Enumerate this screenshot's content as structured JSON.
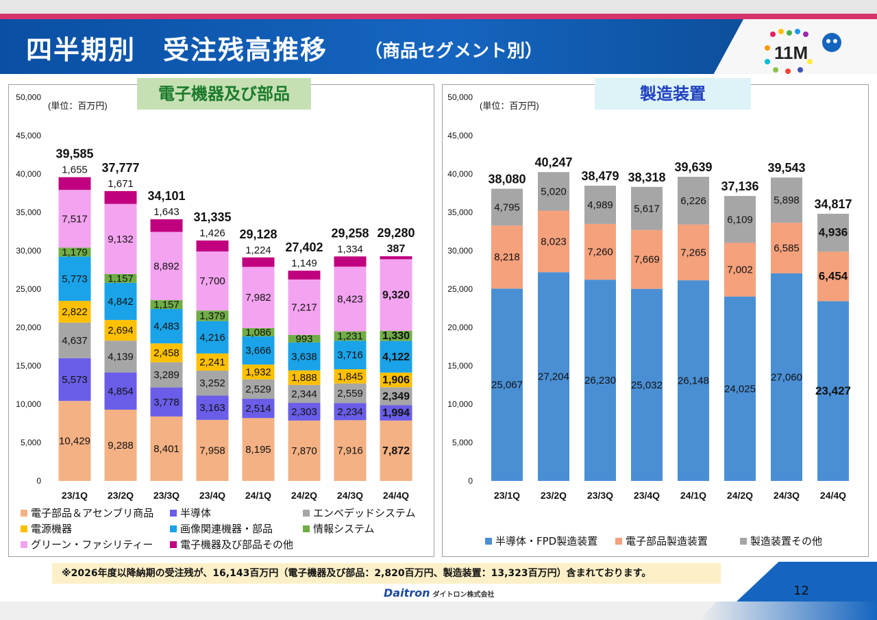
{
  "header": {
    "title": "四半期別　受注残高推移",
    "subtitle": "（商品セグメント別）",
    "logo_text": "11M"
  },
  "left_panel": {
    "tag": "電子機器及び部品"
  },
  "right_panel": {
    "tag": "製造装置"
  },
  "chart_data": [
    {
      "type": "bar",
      "stacked": true,
      "title": "電子機器及び部品",
      "unit_label": "(単位：百万円)",
      "categories": [
        "23/1Q",
        "23/2Q",
        "23/3Q",
        "23/4Q",
        "24/1Q",
        "24/2Q",
        "24/3Q",
        "24/4Q"
      ],
      "ylim": [
        0,
        50000
      ],
      "yticks": [
        0,
        5000,
        10000,
        15000,
        20000,
        25000,
        30000,
        35000,
        40000,
        45000,
        50000
      ],
      "ytick_labels": [
        "0",
        "5,000",
        "10,000",
        "15,000",
        "20,000",
        "25,000",
        "30,000",
        "35,000",
        "40,000",
        "45,000",
        "50,000"
      ],
      "totals": [
        "39,585",
        "37,777",
        "34,101",
        "31,335",
        "29,128",
        "27,402",
        "29,258",
        "29,280"
      ],
      "total_values": [
        39585,
        37777,
        34101,
        31335,
        29128,
        27402,
        29258,
        29280
      ],
      "series": [
        {
          "name": "電子部品＆アセンブリ商品",
          "color": "#f4b183",
          "values": [
            10429,
            9288,
            8401,
            7958,
            8195,
            7870,
            7916,
            7872
          ],
          "labels": [
            "10,429",
            "9,288",
            "8,401",
            "7,958",
            "8,195",
            "7,870",
            "7,916",
            "7,872"
          ]
        },
        {
          "name": "半導体",
          "color": "#6a5de8",
          "values": [
            5573,
            4854,
            3778,
            3163,
            2514,
            2303,
            2234,
            1994
          ],
          "labels": [
            "5,573",
            "4,854",
            "3,778",
            "3,163",
            "2,514",
            "2,303",
            "2,234",
            "1,994"
          ]
        },
        {
          "name": "エンベデッドシステム",
          "color": "#a6a6a6",
          "values": [
            4637,
            4139,
            3289,
            3252,
            2529,
            2344,
            2559,
            2349
          ],
          "labels": [
            "4,637",
            "4,139",
            "3,289",
            "3,252",
            "2,529",
            "2,344",
            "2,559",
            "2,349"
          ]
        },
        {
          "name": "電源機器",
          "color": "#ffc000",
          "values": [
            2822,
            2694,
            2458,
            2241,
            1932,
            1888,
            1845,
            1906
          ],
          "labels": [
            "2,822",
            "2,694",
            "2,458",
            "2,241",
            "1,932",
            "1,888",
            "1,845",
            "1,906"
          ]
        },
        {
          "name": "画像関連機器・部品",
          "color": "#1aa3e8",
          "values": [
            5773,
            4842,
            4483,
            4216,
            3666,
            3638,
            3716,
            4122
          ],
          "labels": [
            "5,773",
            "4,842",
            "4,483",
            "4,216",
            "3,666",
            "3,638",
            "3,716",
            "4,122"
          ]
        },
        {
          "name": "情報システム",
          "color": "#70ad47",
          "values": [
            1179,
            1157,
            1157,
            1379,
            1086,
            993,
            1231,
            1330
          ],
          "labels": [
            "1,179",
            "1,157",
            "1,157",
            "1,379",
            "1,086",
            "993",
            "1,231",
            "1,330"
          ]
        },
        {
          "name": "グリーン・ファシリティー",
          "color": "#f3a3f0",
          "values": [
            7517,
            9132,
            8892,
            7700,
            7982,
            7217,
            8423,
            9320
          ],
          "labels": [
            "7,517",
            "9,132",
            "8,892",
            "7,700",
            "7,982",
            "7,217",
            "8,423",
            "9,320"
          ]
        },
        {
          "name": "電子機器及び部品その他",
          "color": "#c0007f",
          "values": [
            1655,
            1671,
            1643,
            1426,
            1224,
            1149,
            1334,
            387
          ],
          "labels": [
            "1,655",
            "1,671",
            "1,643",
            "1,426",
            "1,224",
            "1,149",
            "1,334",
            "387"
          ]
        }
      ]
    },
    {
      "type": "bar",
      "stacked": true,
      "title": "製造装置",
      "unit_label": "(単位：百万円)",
      "categories": [
        "23/1Q",
        "23/2Q",
        "23/3Q",
        "23/4Q",
        "24/1Q",
        "24/2Q",
        "24/3Q",
        "24/4Q"
      ],
      "ylim": [
        0,
        50000
      ],
      "yticks": [
        0,
        5000,
        10000,
        15000,
        20000,
        25000,
        30000,
        35000,
        40000,
        45000,
        50000
      ],
      "ytick_labels": [
        "0",
        "5,000",
        "10,000",
        "15,000",
        "20,000",
        "25,000",
        "30,000",
        "35,000",
        "40,000",
        "45,000",
        "50,000"
      ],
      "totals": [
        "38,080",
        "40,247",
        "38,479",
        "38,318",
        "39,639",
        "37,136",
        "39,543",
        "34,817"
      ],
      "total_values": [
        38080,
        40247,
        38479,
        38318,
        39639,
        37136,
        39543,
        34817
      ],
      "series": [
        {
          "name": "半導体・FPD製造装置",
          "color": "#4a8fd4",
          "values": [
            25067,
            27204,
            26230,
            25032,
            26148,
            24025,
            27060,
            23427
          ],
          "labels": [
            "25,067",
            "27,204",
            "26,230",
            "25,032",
            "26,148",
            "24,025",
            "27,060",
            "23,427"
          ]
        },
        {
          "name": "電子部品製造装置",
          "color": "#f4a17c",
          "values": [
            8218,
            8023,
            7260,
            7669,
            7265,
            7002,
            6585,
            6454
          ],
          "labels": [
            "8,218",
            "8,023",
            "7,260",
            "7,669",
            "7,265",
            "7,002",
            "6,585",
            "6,454"
          ]
        },
        {
          "name": "製造装置その他",
          "color": "#a6a6a6",
          "values": [
            4795,
            5020,
            4989,
            5617,
            6226,
            6109,
            5898,
            4936
          ],
          "labels": [
            "4,795",
            "5,020",
            "4,989",
            "5,617",
            "6,226",
            "6,109",
            "5,898",
            "4,936"
          ]
        }
      ]
    }
  ],
  "note": "※2026年度以降納期の受注残が、16,143百万円（電子機器及び部品：2,820百万円、製造装置：13,323百万円）含まれております。",
  "footer": {
    "brand": "Daitron",
    "brand_kana": "ダイトロン株式会社",
    "page_number": "12"
  }
}
